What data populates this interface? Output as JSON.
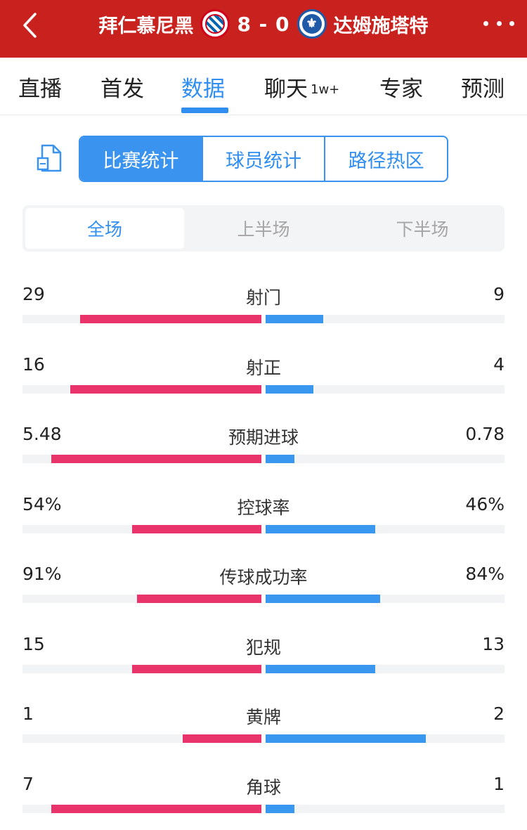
{
  "header": {
    "home_team": "拜仁慕尼黑",
    "score": "8 - 0",
    "away_team": "达姆施塔特"
  },
  "tabs": [
    {
      "label": "直播"
    },
    {
      "label": "首发"
    },
    {
      "label": "数据"
    },
    {
      "label": "聊天",
      "badge": "1w+"
    },
    {
      "label": "专家"
    },
    {
      "label": "预测"
    }
  ],
  "segments": [
    "比赛统计",
    "球员统计",
    "路径热区"
  ],
  "halves": [
    "全场",
    "上半场",
    "下半场"
  ],
  "colors": {
    "brand_red": "#c8211e",
    "accent_blue": "#2f8ef0",
    "home_bar": "#e8336b",
    "away_bar": "#3a97ef"
  },
  "stats": [
    {
      "label": "射门",
      "home": "29",
      "away": "9",
      "home_fill": 0.76,
      "away_fill": 0.24
    },
    {
      "label": "射正",
      "home": "16",
      "away": "4",
      "home_fill": 0.8,
      "away_fill": 0.2
    },
    {
      "label": "预期进球",
      "home": "5.48",
      "away": "0.78",
      "home_fill": 0.88,
      "away_fill": 0.12
    },
    {
      "label": "控球率",
      "home": "54%",
      "away": "46%",
      "home_fill": 0.54,
      "away_fill": 0.46
    },
    {
      "label": "传球成功率",
      "home": "91%",
      "away": "84%",
      "home_fill": 0.52,
      "away_fill": 0.48
    },
    {
      "label": "犯规",
      "home": "15",
      "away": "13",
      "home_fill": 0.54,
      "away_fill": 0.46
    },
    {
      "label": "黄牌",
      "home": "1",
      "away": "2",
      "home_fill": 0.33,
      "away_fill": 0.67
    },
    {
      "label": "角球",
      "home": "7",
      "away": "1",
      "home_fill": 0.88,
      "away_fill": 0.12
    }
  ]
}
